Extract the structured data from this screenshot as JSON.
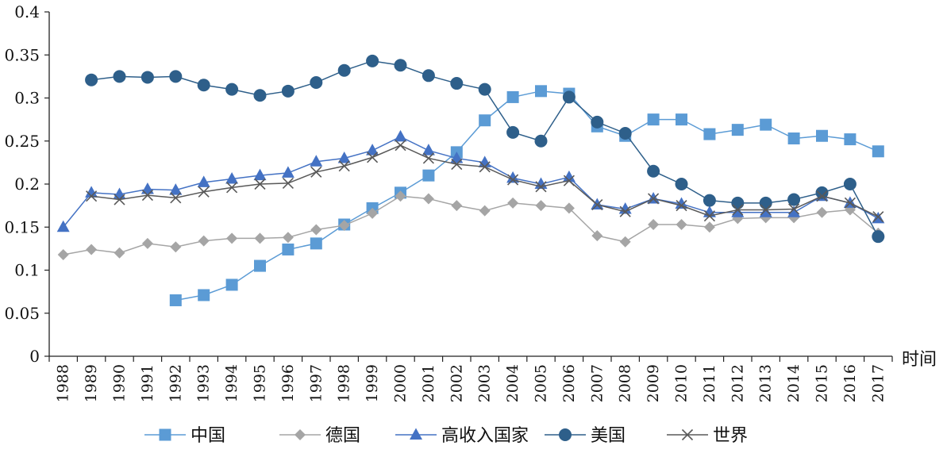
{
  "chart_data": {
    "type": "line",
    "x_unit_label": "时间",
    "categories": [
      "1988",
      "1989",
      "1990",
      "1991",
      "1992",
      "1993",
      "1994",
      "1995",
      "1996",
      "1997",
      "1998",
      "1999",
      "2000",
      "2001",
      "2002",
      "2003",
      "2004",
      "2005",
      "2006",
      "2007",
      "2008",
      "2009",
      "2010",
      "2011",
      "2012",
      "2013",
      "2014",
      "2015",
      "2016",
      "2017"
    ],
    "ylim": [
      0,
      0.4
    ],
    "yticks": [
      0,
      0.05,
      0.1,
      0.15,
      0.2,
      0.25,
      0.3,
      0.35,
      0.4
    ],
    "ytick_labels": [
      "0",
      "0.05",
      "0.1",
      "0.15",
      "0.2",
      "0.25",
      "0.3",
      "0.35",
      "0.4"
    ],
    "grid": false,
    "legend_position": "bottom",
    "series": [
      {
        "name": "中国",
        "color": "#5b9bd5",
        "marker": "square",
        "values": [
          null,
          null,
          null,
          null,
          0.065,
          0.071,
          0.083,
          0.105,
          0.124,
          0.131,
          0.153,
          0.172,
          0.19,
          0.21,
          0.237,
          0.274,
          0.301,
          0.308,
          0.305,
          0.267,
          0.256,
          0.275,
          0.275,
          0.258,
          0.263,
          0.269,
          0.253,
          0.256,
          0.252,
          0.238
        ]
      },
      {
        "name": "德国",
        "color": "#a5a5a5",
        "marker": "diamond",
        "values": [
          0.118,
          0.124,
          0.12,
          0.131,
          0.127,
          0.134,
          0.137,
          0.137,
          0.138,
          0.147,
          0.152,
          0.166,
          0.186,
          0.183,
          0.175,
          0.169,
          0.178,
          0.175,
          0.172,
          0.14,
          0.133,
          0.153,
          0.153,
          0.15,
          0.16,
          0.161,
          0.161,
          0.167,
          0.17,
          0.143
        ]
      },
      {
        "name": "高收入国家",
        "color": "#4472c4",
        "marker": "triangle",
        "values": [
          0.15,
          0.19,
          0.188,
          0.194,
          0.193,
          0.202,
          0.206,
          0.21,
          0.213,
          0.226,
          0.23,
          0.239,
          0.255,
          0.239,
          0.23,
          0.225,
          0.207,
          0.2,
          0.208,
          0.176,
          0.171,
          0.183,
          0.177,
          0.167,
          0.167,
          0.167,
          0.167,
          0.186,
          0.178,
          0.16
        ]
      },
      {
        "name": "美国",
        "color": "#2e5f8a",
        "marker": "circle",
        "values": [
          null,
          0.321,
          0.325,
          0.324,
          0.325,
          0.315,
          0.31,
          0.303,
          0.308,
          0.318,
          0.332,
          0.343,
          0.338,
          0.326,
          0.317,
          0.31,
          0.26,
          0.25,
          0.301,
          0.272,
          0.259,
          0.215,
          0.2,
          0.181,
          0.178,
          0.178,
          0.182,
          0.19,
          0.2,
          0.139
        ]
      },
      {
        "name": "世界",
        "color": "#595959",
        "marker": "x",
        "values": [
          null,
          0.186,
          0.182,
          0.187,
          0.184,
          0.191,
          0.196,
          0.2,
          0.201,
          0.214,
          0.221,
          0.231,
          0.245,
          0.23,
          0.223,
          0.22,
          0.205,
          0.197,
          0.204,
          0.176,
          0.168,
          0.183,
          0.175,
          0.163,
          0.17,
          0.17,
          0.171,
          0.186,
          0.178,
          0.162
        ]
      }
    ]
  }
}
